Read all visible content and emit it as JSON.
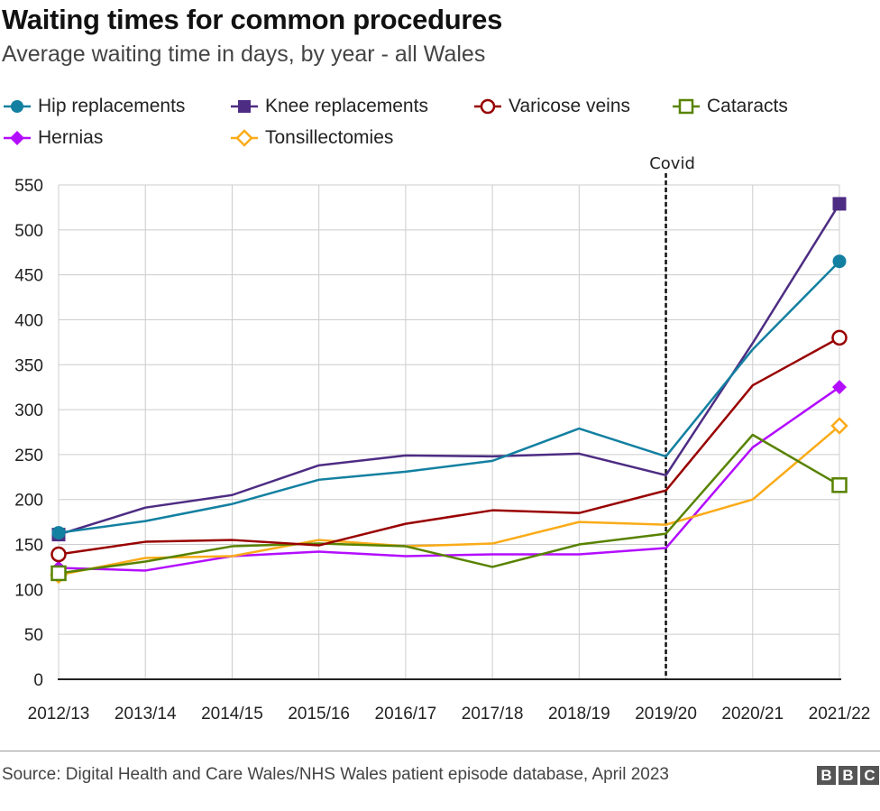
{
  "chart_data": {
    "type": "line",
    "title": "Waiting times for common procedures",
    "subtitle": "Average waiting time in days, by year - all Wales",
    "xlabel": "",
    "ylabel": "",
    "categories": [
      "2012/13",
      "2013/14",
      "2014/15",
      "2015/16",
      "2016/17",
      "2017/18",
      "2018/19",
      "2019/20",
      "2020/21",
      "2021/22"
    ],
    "yticks": [
      0,
      50,
      100,
      150,
      200,
      250,
      300,
      350,
      400,
      450,
      500,
      550
    ],
    "ylim": [
      0,
      550
    ],
    "grid": true,
    "legend_placement": "top-left",
    "annotation": {
      "label": "Covid",
      "category": "2019/20",
      "style": "dashed vertical line"
    },
    "series": [
      {
        "name": "Hip replacements",
        "color": "#1380A1",
        "marker": "filled-circle",
        "values": [
          163,
          176,
          195,
          222,
          231,
          243,
          279,
          248,
          367,
          465
        ]
      },
      {
        "name": "Knee replacements",
        "color": "#4D2C83",
        "marker": "filled-square",
        "values": [
          161,
          191,
          205,
          238,
          249,
          248,
          251,
          227,
          374,
          529
        ]
      },
      {
        "name": "Varicose veins",
        "color": "#990000",
        "marker": "open-circle",
        "values": [
          139,
          153,
          155,
          149,
          173,
          188,
          185,
          210,
          327,
          380
        ]
      },
      {
        "name": "Cataracts",
        "color": "#588300",
        "marker": "open-square",
        "values": [
          118,
          131,
          148,
          151,
          148,
          125,
          150,
          162,
          272,
          216
        ]
      },
      {
        "name": "Hernias",
        "color": "#B30DFF",
        "marker": "filled-diamond",
        "values": [
          124,
          121,
          137,
          142,
          137,
          139,
          139,
          146,
          258,
          325
        ]
      },
      {
        "name": "Tonsillectomies",
        "color": "#FAAB18",
        "marker": "open-diamond",
        "values": [
          116,
          135,
          137,
          155,
          148,
          151,
          175,
          172,
          200,
          282
        ]
      }
    ]
  },
  "footer": {
    "source": "Source: Digital Health and Care Wales/NHS Wales patient episode database, April 2023",
    "logo": [
      "B",
      "B",
      "C"
    ]
  }
}
